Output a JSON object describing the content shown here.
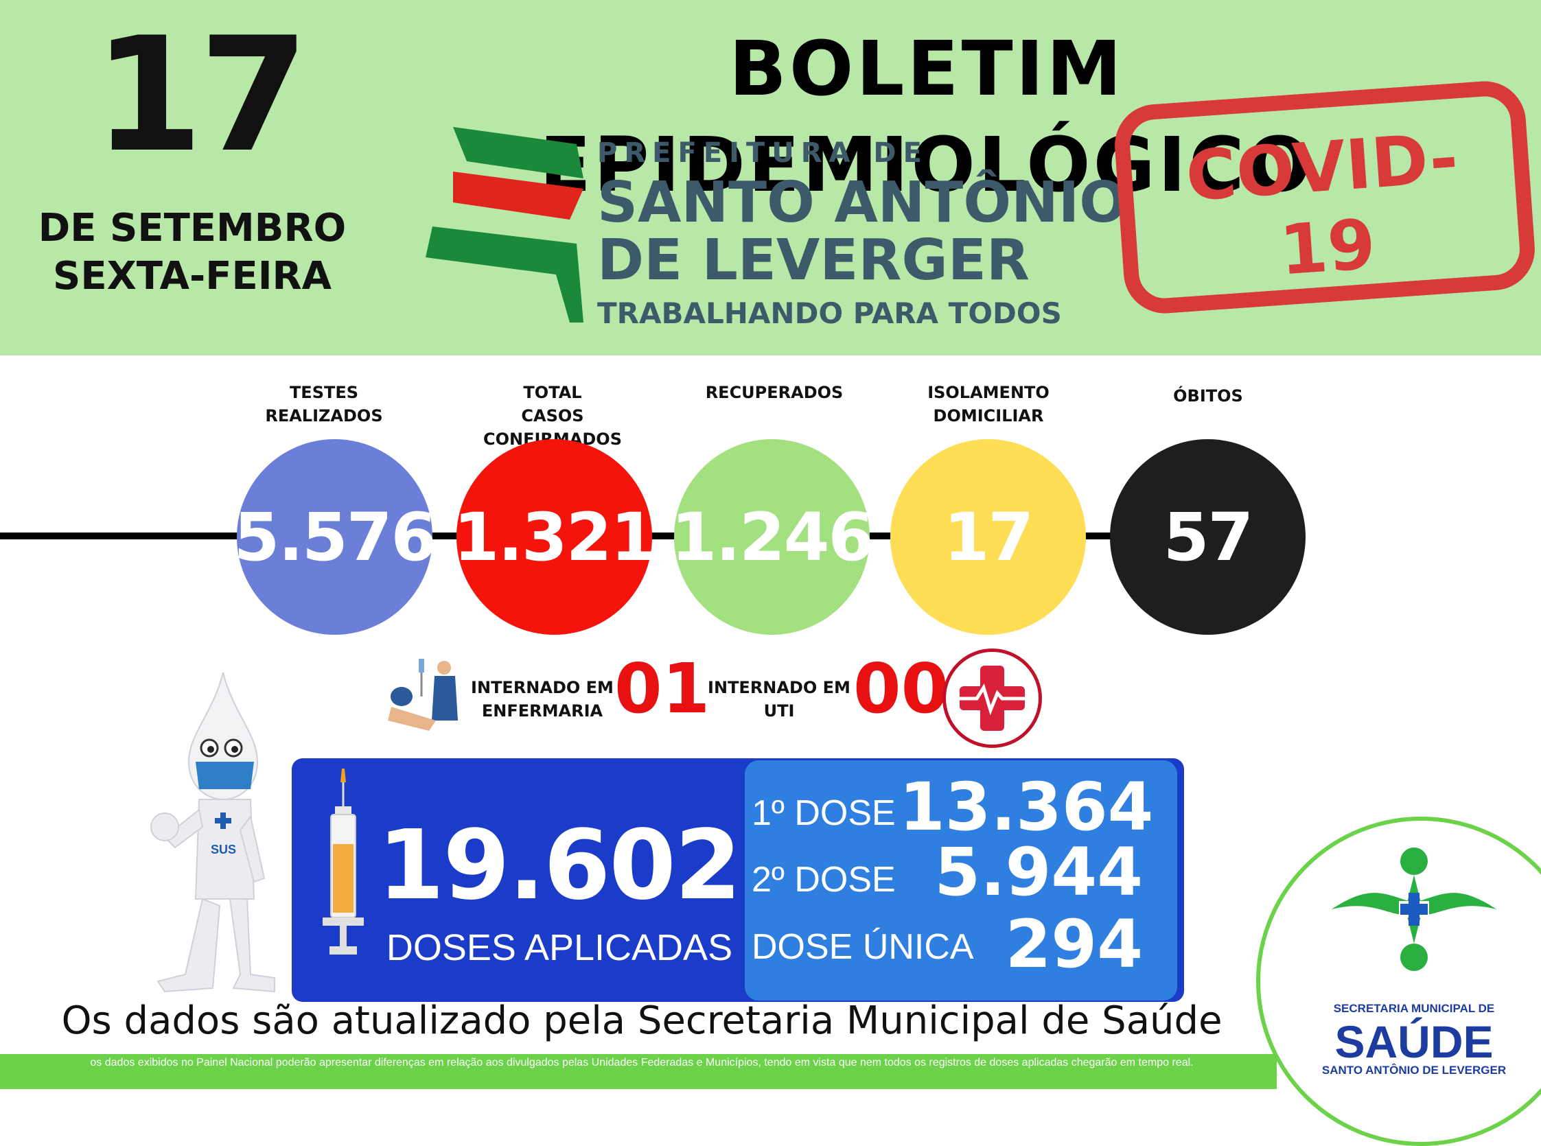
{
  "header": {
    "day": "17",
    "month_line": "DE SETEMBRO",
    "weekday_line": "SEXTA-FEIRA",
    "title": "BOLETIM EPIDEMIOLÓGICO",
    "prefeitura_small": "PREFEITURA DE",
    "city_line1": "SANTO ANTÔNIO",
    "city_line2": "DE LEVERGER",
    "slogan": "TRABALHANDO PARA TODOS",
    "stamp_text": "COVID-19"
  },
  "stats": [
    {
      "label_line1": "TESTES",
      "label_line2": "REALIZADOS",
      "value": "5.576",
      "color": "#6b7fd9"
    },
    {
      "label_line1": "TOTAL",
      "label_line2": "CASOS CONFIRMADOS",
      "value": "1.321",
      "color": "#f4140c"
    },
    {
      "label_line1": "RECUPERADOS",
      "label_line2": "",
      "value": "1.246",
      "color": "#a2e080"
    },
    {
      "label_line1": "ISOLAMENTO",
      "label_line2": "DOMICILIAR",
      "value": "17",
      "color": "#ffdd55"
    },
    {
      "label_line1": "ÓBITOS",
      "label_line2": "",
      "value": "57",
      "color": "#1e1e1e"
    }
  ],
  "internacao": {
    "enfermaria_line1": "INTERNADO EM",
    "enfermaria_line2": "ENFERMARIA",
    "enfermaria_value": "01",
    "uti_line1": "INTERNADO EM",
    "uti_line2": "UTI",
    "uti_value": "00"
  },
  "vacinacao": {
    "total": "19.602",
    "total_label": "DOSES APLICADAS",
    "dose1_label": "1º DOSE",
    "dose1_value": "13.364",
    "dose2_label": "2º DOSE",
    "dose2_value": "5.944",
    "unica_label": "DOSE ÚNICA",
    "unica_value": "294",
    "mascot_badge": "SUS"
  },
  "footer": {
    "note": "Os dados são atualizado pela Secretaria Municipal de Saúde",
    "disclaimer": "os dados exibidos no Painel Nacional poderão apresentar diferenças em relação aos divulgados pelas Unidades Federadas e Municípios, tendo em vista que nem todos os registros de doses aplicadas chegarão em tempo real."
  },
  "secretaria": {
    "line1": "SECRETARIA MUNICIPAL DE",
    "line2": "SAÚDE",
    "line3": "SANTO ANTÔNIO DE LEVERGER"
  }
}
